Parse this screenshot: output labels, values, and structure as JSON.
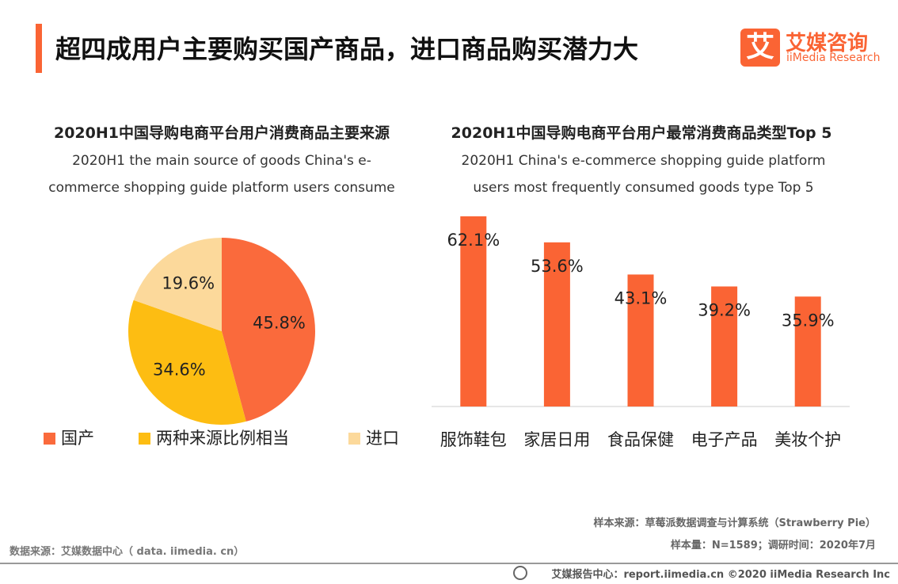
{
  "header": {
    "title": "超四成用户主要购买国产商品，进口商品购买潜力大",
    "logo_mark": "艾",
    "logo_name": "艾媒咨询",
    "logo_sub": "iiMedia Research"
  },
  "chart_data": [
    {
      "type": "pie",
      "title": "2020H1中国导购电商平台用户消费商品主要来源",
      "subtitle": "2020H1 the main source of goods China's e-commerce shopping guide platform users consume",
      "categories": [
        "国产",
        "两种来源比例相当",
        "进口"
      ],
      "values": [
        45.8,
        34.6,
        19.6
      ],
      "value_labels": [
        "45.8%",
        "34.6%",
        "19.6%"
      ],
      "colors": [
        "#fa6a3c",
        "#fdbd12",
        "#fcd99b"
      ]
    },
    {
      "type": "bar",
      "title": "2020H1中国导购电商平台用户最常消费商品类型Top 5",
      "subtitle": "2020H1 China's e-commerce shopping guide platform users most frequently consumed goods type Top 5",
      "categories": [
        "服饰鞋包",
        "家居日用",
        "食品保健",
        "电子产品",
        "美妆个护"
      ],
      "values": [
        62.1,
        53.6,
        43.1,
        39.2,
        35.9
      ],
      "value_labels": [
        "62.1%",
        "53.6%",
        "43.1%",
        "39.2%",
        "35.9%"
      ],
      "color": "#fa6434"
    }
  ],
  "footer": {
    "sample_source": "样本来源：草莓派数据调查与计算系统（Strawberry Pie）",
    "sample_size": "样本量：N=1589；调研时间：2020年7月",
    "data_source": "数据来源：艾媒数据中心（ data. iimedia. cn）",
    "copyright": "艾媒报告中心：report.iimedia.cn  ©2020  iiMedia Research  Inc"
  }
}
